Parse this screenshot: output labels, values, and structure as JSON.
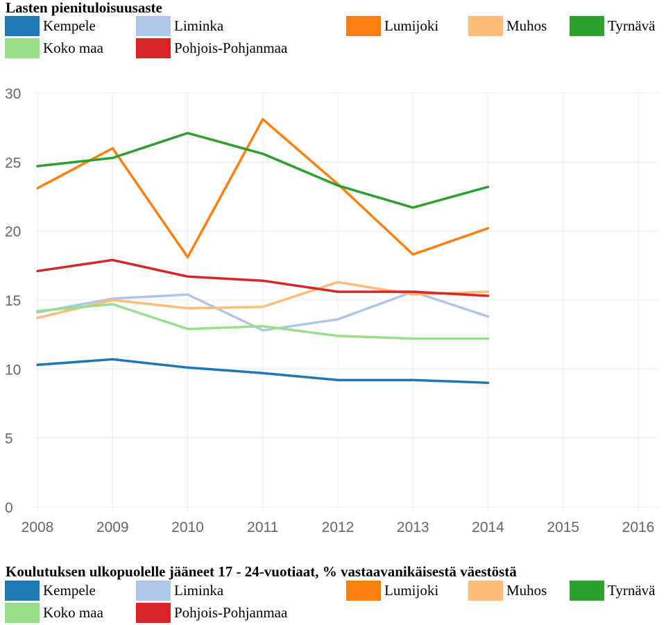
{
  "chart_data": [
    {
      "type": "line",
      "title": "Lasten pienituloisuusaste",
      "x": [
        "2008",
        "2009",
        "2010",
        "2011",
        "2012",
        "2013",
        "2014",
        "2015",
        "2016"
      ],
      "ylim": [
        0,
        30
      ],
      "yticks": [
        "0",
        "5",
        "10",
        "15",
        "20",
        "25",
        "30"
      ],
      "grid": true,
      "legend_placement": "top",
      "series": [
        {
          "name": "Kempele",
          "color": "#1f77b4",
          "values": [
            10.3,
            10.7,
            10.1,
            9.7,
            9.2,
            9.2,
            9.0,
            null,
            null
          ]
        },
        {
          "name": "Liminka",
          "color": "#aec7e8",
          "values": [
            14.1,
            15.1,
            15.4,
            12.8,
            13.6,
            15.6,
            13.8,
            null,
            null
          ]
        },
        {
          "name": "Lumijoki",
          "color": "#ff7f0e",
          "values": [
            23.1,
            26.0,
            18.1,
            28.1,
            23.4,
            18.3,
            20.2,
            null,
            null
          ]
        },
        {
          "name": "Muhos",
          "color": "#ffbb78",
          "values": [
            13.7,
            15.0,
            14.4,
            14.5,
            16.3,
            15.4,
            15.6,
            null,
            null
          ]
        },
        {
          "name": "Tyrnävä",
          "color": "#2ca02c",
          "values": [
            24.7,
            25.3,
            27.1,
            25.6,
            23.3,
            21.7,
            23.2,
            null,
            null
          ]
        },
        {
          "name": "Koko maa",
          "color": "#98df8a",
          "values": [
            14.2,
            14.7,
            12.9,
            13.1,
            12.4,
            12.2,
            12.2,
            null,
            null
          ]
        },
        {
          "name": "Pohjois-Pohjanmaa",
          "color": "#d62728",
          "values": [
            17.1,
            17.9,
            16.7,
            16.4,
            15.6,
            15.6,
            15.3,
            null,
            null
          ]
        }
      ]
    },
    {
      "type": "line",
      "title": "Koulutuksen ulkopuolelle jääneet 17 - 24-vuotiaat, % vastaavanikäisestä väestöstä",
      "series": [
        {
          "name": "Kempele",
          "color": "#1f77b4"
        },
        {
          "name": "Liminka",
          "color": "#aec7e8"
        },
        {
          "name": "Lumijoki",
          "color": "#ff7f0e"
        },
        {
          "name": "Muhos",
          "color": "#ffbb78"
        },
        {
          "name": "Tyrnävä",
          "color": "#2ca02c"
        },
        {
          "name": "Koko maa",
          "color": "#98df8a"
        },
        {
          "name": "Pohjois-Pohjanmaa",
          "color": "#d62728"
        }
      ]
    }
  ]
}
